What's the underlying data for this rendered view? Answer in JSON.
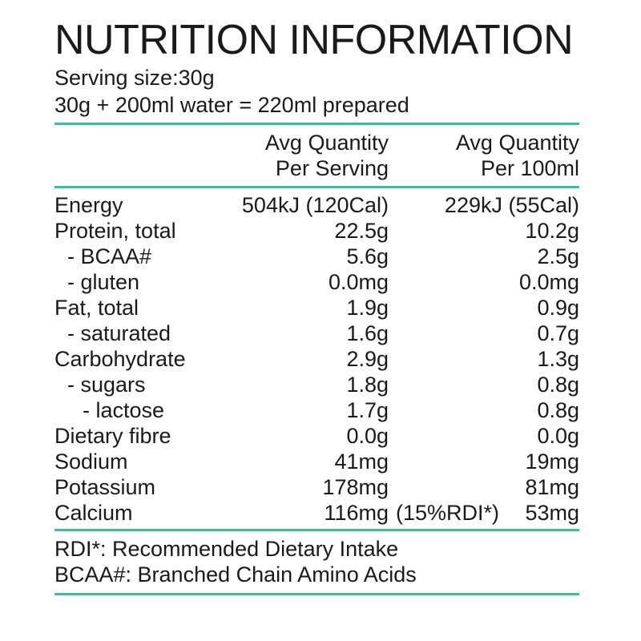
{
  "header": {
    "title": "NUTRITION INFORMATION",
    "serving_size": "Serving size:30g",
    "preparation": "30g + 200ml water = 220ml prepared"
  },
  "colors": {
    "accent_teal": "#3ebf95",
    "text": "#1a1a1a"
  },
  "table": {
    "columns": [
      {
        "title": "Avg Quantity",
        "subtitle": "Per Serving"
      },
      {
        "title": "Avg Quantity",
        "subtitle": "Per 100ml"
      }
    ],
    "rows": [
      {
        "label": "Energy",
        "per_serving": "504kJ (120Cal)",
        "per_100ml": "229kJ (55Cal)"
      },
      {
        "label": "Protein, total",
        "per_serving": "22.5g",
        "per_100ml": "10.2g"
      },
      {
        "label": "- BCAA#",
        "per_serving": "5.6g",
        "per_100ml": "2.5g"
      },
      {
        "label": "- gluten",
        "per_serving": "0.0mg",
        "per_100ml": "0.0mg"
      },
      {
        "label": "Fat, total",
        "per_serving": "1.9g",
        "per_100ml": "0.9g"
      },
      {
        "label": "- saturated",
        "per_serving": "1.6g",
        "per_100ml": "0.7g"
      },
      {
        "label": "Carbohydrate",
        "per_serving": "2.9g",
        "per_100ml": "1.3g"
      },
      {
        "label": "- sugars",
        "per_serving": "1.8g",
        "per_100ml": "0.8g"
      },
      {
        "label": "- lactose",
        "per_serving": "1.7g",
        "per_100ml": "0.8g"
      },
      {
        "label": "Dietary fibre",
        "per_serving": "0.0g",
        "per_100ml": "0.0g"
      },
      {
        "label": "Sodium",
        "per_serving": "41mg",
        "per_100ml": "19mg"
      },
      {
        "label": "Potassium",
        "per_serving": "178mg",
        "per_100ml": "81mg"
      },
      {
        "label": "Calcium",
        "per_serving": "116mg",
        "serving_note": "(15%RDI*)",
        "per_100ml": "53mg"
      }
    ]
  },
  "footnotes": [
    "RDI*: Recommended Dietary Intake",
    "BCAA#: Branched Chain Amino Acids"
  ]
}
